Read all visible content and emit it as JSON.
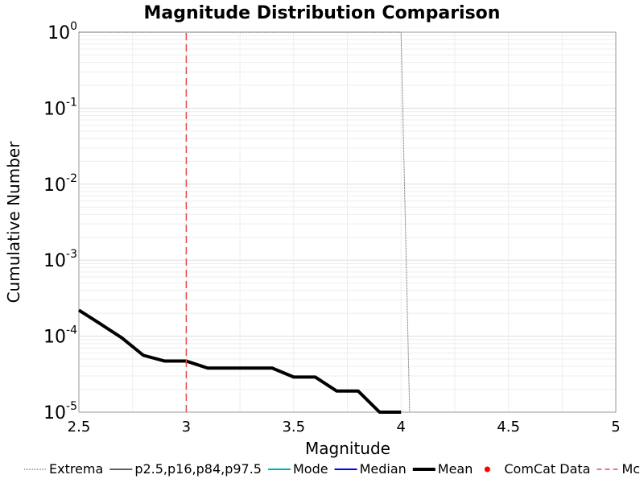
{
  "chart_data": {
    "type": "line",
    "title": "Magnitude Distribution Comparison",
    "xlabel": "Magnitude",
    "ylabel": "Cumulative Number",
    "xlim": [
      2.5,
      5
    ],
    "ylim": [
      1e-05,
      1
    ],
    "y_scale": "log",
    "grid": true,
    "legend_position": "bottom",
    "x_ticks": [
      "2.5",
      "3",
      "3.5",
      "4",
      "4.5",
      "5"
    ],
    "y_ticks": [
      {
        "base": "10",
        "exp": "0",
        "value": 1
      },
      {
        "base": "10",
        "exp": "-1",
        "value": 0.1
      },
      {
        "base": "10",
        "exp": "-2",
        "value": 0.01
      },
      {
        "base": "10",
        "exp": "-3",
        "value": 0.001
      },
      {
        "base": "10",
        "exp": "-4",
        "value": 0.0001
      },
      {
        "base": "10",
        "exp": "-5",
        "value": 1e-05
      }
    ],
    "series": [
      {
        "name": "Extrema",
        "color": "#555555",
        "style": "dotted",
        "x": [
          2.5,
          4.0,
          4.04
        ],
        "y": [
          1,
          1,
          1e-05
        ]
      },
      {
        "name": "p2.5,p16,p84,p97.5",
        "color": "#000000",
        "style": "solid-thin",
        "x": [],
        "y": []
      },
      {
        "name": "Mode",
        "color": "#00b3b3",
        "style": "solid",
        "x": [],
        "y": []
      },
      {
        "name": "Median",
        "color": "#0000ff",
        "style": "solid",
        "x": [],
        "y": []
      },
      {
        "name": "Mean",
        "color": "#000000",
        "style": "solid-thick",
        "x": [
          2.5,
          2.6,
          2.7,
          2.8,
          2.9,
          3.0,
          3.1,
          3.2,
          3.3,
          3.4,
          3.5,
          3.6,
          3.7,
          3.8,
          3.9,
          4.0
        ],
        "y": [
          0.00022,
          0.000145,
          9.5e-05,
          5.6e-05,
          4.7e-05,
          4.7e-05,
          3.8e-05,
          3.8e-05,
          3.8e-05,
          3.8e-05,
          2.9e-05,
          2.9e-05,
          1.9e-05,
          1.9e-05,
          1e-05,
          1e-05
        ]
      },
      {
        "name": "ComCat Data",
        "color": "#ff0000",
        "style": "point",
        "x": [],
        "y": []
      },
      {
        "name": "Mc",
        "color": "#e34a4a",
        "style": "dashed",
        "x": [
          3.0,
          3.0
        ],
        "y": [
          1e-05,
          1
        ]
      }
    ]
  }
}
